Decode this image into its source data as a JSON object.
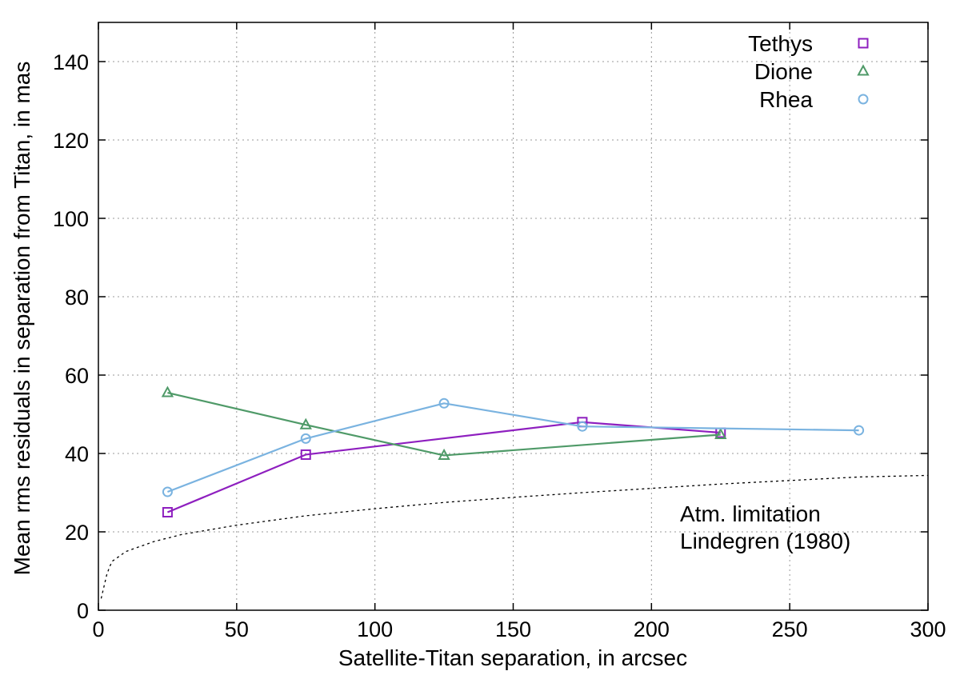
{
  "chart_data": {
    "type": "line",
    "title": "",
    "xlabel": "Satellite-Titan separation, in arcsec",
    "ylabel": "Mean rms residuals in separation from Titan, in mas",
    "xlim": [
      0,
      300
    ],
    "ylim": [
      0,
      150
    ],
    "xticks": [
      0,
      50,
      100,
      150,
      200,
      250,
      300
    ],
    "yticks": [
      0,
      20,
      40,
      60,
      80,
      100,
      120,
      140
    ],
    "grid": true,
    "legend_position": "top-right",
    "series": [
      {
        "name": "Tethys",
        "marker": "square",
        "color": "#8e1fbf",
        "x": [
          25,
          75,
          175,
          225
        ],
        "y": [
          25,
          39.7,
          48,
          45.3
        ]
      },
      {
        "name": "Dione",
        "marker": "triangle",
        "color": "#4f9a68",
        "x": [
          25,
          75,
          125,
          225
        ],
        "y": [
          55.5,
          47.3,
          39.5,
          44.8
        ]
      },
      {
        "name": "Rhea",
        "marker": "circle",
        "color": "#7ab3e0",
        "x": [
          25,
          75,
          125,
          175,
          275
        ],
        "y": [
          30.2,
          43.8,
          52.8,
          46.9,
          45.9
        ]
      }
    ],
    "limit_curve": {
      "name": "Atm. limitation Lindegren (1980)",
      "style": "dotted",
      "color": "#000000",
      "x": [
        1,
        2,
        3,
        4,
        5,
        10,
        20,
        30,
        50,
        75,
        100,
        125,
        150,
        175,
        200,
        225,
        250,
        275,
        300
      ],
      "y": [
        3,
        6,
        9,
        11,
        12.5,
        15,
        17.5,
        19.3,
        21.7,
        24.1,
        25.9,
        27.5,
        28.8,
        30,
        31.1,
        32.2,
        33.1,
        34,
        34.4
      ]
    },
    "annotation": {
      "line1": "Atm. limitation",
      "line2": "Lindegren (1980)"
    }
  }
}
